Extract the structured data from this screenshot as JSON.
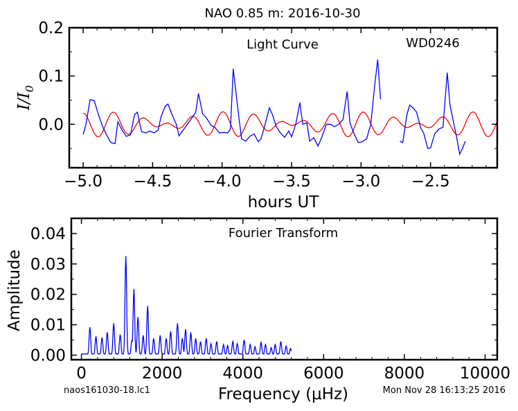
{
  "title": "NAO 0.85 m:  2016-10-30",
  "footer": {
    "filename": "naos161030-18.lc1",
    "timestamp": "Mon Nov 28 16:13:25 2016"
  },
  "chart_data": [
    {
      "type": "line",
      "annotation_left": "Light Curve",
      "annotation_right": "WD0246",
      "xlabel": "hours UT",
      "ylabel": "I/I",
      "ylabel_sub": "0",
      "xlim": [
        -5.1,
        -2.02
      ],
      "ylim": [
        -0.09,
        0.2
      ],
      "xticks": [
        -5.0,
        -4.5,
        -4.0,
        -3.5,
        -3.0,
        -2.5
      ],
      "xtick_labels": [
        "−5.0",
        "−4.5",
        "−4.0",
        "−3.5",
        "−3.0",
        "−2.5"
      ],
      "yticks": [
        0.0,
        0.1,
        0.2
      ],
      "ytick_labels": [
        "0.0",
        "0.1",
        "0.2"
      ],
      "grid": false,
      "colors": {
        "data": "#0000ff",
        "model": "#ff0000"
      },
      "series": [
        {
          "segments": [
            [
              [
                -5.0,
                -0.021
              ],
              [
                -4.98,
                0.0
              ],
              [
                -4.95,
                0.051
              ],
              [
                -4.92,
                0.049
              ],
              [
                -4.89,
                0.02
              ],
              [
                -4.86,
                -0.005
              ],
              [
                -4.83,
                -0.023
              ],
              [
                -4.8,
                -0.038
              ],
              [
                -4.77,
                -0.04
              ],
              [
                -4.75,
                0.005
              ],
              [
                -4.72,
                -0.012
              ],
              [
                -4.69,
                -0.025
              ],
              [
                -4.66,
                -0.022
              ],
              [
                -4.63,
                0.02
              ],
              [
                -4.61,
                0.025
              ],
              [
                -4.58,
                -0.015
              ],
              [
                -4.55,
                -0.018
              ],
              [
                -4.52,
                -0.014
              ],
              [
                -4.49,
                -0.018
              ],
              [
                -4.46,
                -0.012
              ],
              [
                -4.44,
                0.015
              ],
              [
                -4.41,
                0.037
              ],
              [
                -4.39,
                0.042
              ],
              [
                -4.36,
                0.02
              ],
              [
                -4.33,
                0.0
              ],
              [
                -4.31,
                -0.024
              ],
              [
                -4.28,
                -0.012
              ],
              [
                -4.25,
                0.0
              ],
              [
                -4.22,
                0.012
              ],
              [
                -4.19,
                0.025
              ],
              [
                -4.17,
                0.064
              ],
              [
                -4.14,
                0.022
              ],
              [
                -4.11,
                0.012
              ],
              [
                -4.08,
                -0.002
              ],
              [
                -4.05,
                -0.007
              ],
              [
                -4.02,
                -0.018
              ],
              [
                -3.99,
                -0.017
              ],
              [
                -3.96,
                -0.018
              ],
              [
                -3.94,
                -0.01
              ],
              [
                -3.92,
                0.115
              ],
              [
                -3.89,
                0.04
              ],
              [
                -3.86,
                -0.03
              ],
              [
                -3.83,
                -0.035
              ],
              [
                -3.8,
                -0.025
              ],
              [
                -3.77,
                -0.02
              ],
              [
                -3.74,
                -0.036
              ],
              [
                -3.72,
                -0.03
              ],
              [
                -3.69,
                0.0
              ],
              [
                -3.66,
                0.034
              ],
              [
                -3.64,
                0.022
              ],
              [
                -3.61,
                -0.005
              ],
              [
                -3.58,
                -0.018
              ],
              [
                -3.55,
                -0.027
              ],
              [
                -3.52,
                -0.014
              ],
              [
                -3.5,
                -0.026
              ],
              [
                -3.47,
                0.0
              ],
              [
                -3.44,
                0.045
              ],
              [
                -3.42,
                0.0
              ],
              [
                -3.39,
                0.003
              ],
              [
                -3.37,
                -0.035
              ],
              [
                -3.34,
                -0.028
              ],
              [
                -3.31,
                -0.045
              ],
              [
                -3.28,
                -0.025
              ],
              [
                -3.25,
                0.0
              ],
              [
                -3.22,
                0.0
              ],
              [
                -3.19,
                -0.005
              ],
              [
                -3.16,
                0.0
              ],
              [
                -3.13,
                0.01
              ],
              [
                -3.1,
                0.068
              ],
              [
                -3.08,
                0.003
              ],
              [
                -3.05,
                -0.02
              ],
              [
                -3.02,
                -0.038
              ],
              [
                -2.99,
                -0.036
              ],
              [
                -2.96,
                -0.03
              ],
              [
                -2.93,
                0.0
              ],
              [
                -2.9,
                0.085
              ],
              [
                -2.88,
                0.134
              ],
              [
                -2.86,
                0.052
              ]
            ],
            [
              [
                -2.72,
                -0.035
              ],
              [
                -2.7,
                -0.038
              ],
              [
                -2.67,
                0.02
              ],
              [
                -2.65,
                0.04
              ],
              [
                -2.62,
                0.032
              ],
              [
                -2.6,
                0.025
              ],
              [
                -2.57,
                -0.008
              ],
              [
                -2.55,
                -0.018
              ],
              [
                -2.52,
                -0.05
              ],
              [
                -2.5,
                -0.049
              ],
              [
                -2.47,
                -0.02
              ],
              [
                -2.44,
                -0.01
              ],
              [
                -2.41,
                -0.006
              ],
              [
                -2.38,
                0.107
              ],
              [
                -2.36,
                0.04
              ],
              [
                -2.33,
                -0.002
              ],
              [
                -2.31,
                -0.03
              ],
              [
                -2.29,
                -0.062
              ],
              [
                -2.27,
                -0.05
              ],
              [
                -2.25,
                -0.035
              ]
            ]
          ]
        },
        {
          "model": {
            "kind": "two-tone sinusoid",
            "x_range": [
              -5.0,
              -2.02
            ]
          }
        }
      ]
    },
    {
      "type": "line",
      "annotation": "Fourier Transform",
      "xlabel": "Frequency (μHz)",
      "ylabel": "Amplitude",
      "xlim": [
        -250,
        10300
      ],
      "ylim": [
        -0.0015,
        0.045
      ],
      "xticks": [
        0,
        2000,
        4000,
        6000,
        8000,
        10000
      ],
      "xtick_labels": [
        "0",
        "2000",
        "4000",
        "6000",
        "8000",
        "10000"
      ],
      "yticks": [
        0.0,
        0.01,
        0.02,
        0.03,
        0.04
      ],
      "ytick_labels": [
        "0.00",
        "0.01",
        "0.02",
        "0.03",
        "0.04"
      ],
      "grid": false,
      "color": "#0000ff",
      "x_range": [
        0,
        5200
      ],
      "peaks": [
        {
          "x": 210,
          "y": 0.0092
        },
        {
          "x": 360,
          "y": 0.0062
        },
        {
          "x": 510,
          "y": 0.0058
        },
        {
          "x": 640,
          "y": 0.0075
        },
        {
          "x": 800,
          "y": 0.0105
        },
        {
          "x": 960,
          "y": 0.0068
        },
        {
          "x": 1100,
          "y": 0.0326
        },
        {
          "x": 1250,
          "y": 0.005
        },
        {
          "x": 1300,
          "y": 0.0218
        },
        {
          "x": 1400,
          "y": 0.0125
        },
        {
          "x": 1530,
          "y": 0.0065
        },
        {
          "x": 1640,
          "y": 0.0162
        },
        {
          "x": 1790,
          "y": 0.0055
        },
        {
          "x": 1950,
          "y": 0.0065
        },
        {
          "x": 2100,
          "y": 0.0055
        },
        {
          "x": 2210,
          "y": 0.0078
        },
        {
          "x": 2380,
          "y": 0.0105
        },
        {
          "x": 2500,
          "y": 0.0055
        },
        {
          "x": 2580,
          "y": 0.0085
        },
        {
          "x": 2710,
          "y": 0.0075
        },
        {
          "x": 2830,
          "y": 0.0055
        },
        {
          "x": 2950,
          "y": 0.0045
        },
        {
          "x": 3090,
          "y": 0.0055
        },
        {
          "x": 3210,
          "y": 0.0038
        },
        {
          "x": 3350,
          "y": 0.0045
        },
        {
          "x": 3520,
          "y": 0.0035
        },
        {
          "x": 3620,
          "y": 0.0032
        },
        {
          "x": 3750,
          "y": 0.0045
        },
        {
          "x": 3860,
          "y": 0.0038
        },
        {
          "x": 4030,
          "y": 0.005
        },
        {
          "x": 4180,
          "y": 0.0035
        },
        {
          "x": 4300,
          "y": 0.0028
        },
        {
          "x": 4450,
          "y": 0.0042
        },
        {
          "x": 4560,
          "y": 0.0035
        },
        {
          "x": 4700,
          "y": 0.0025
        },
        {
          "x": 4800,
          "y": 0.0035
        },
        {
          "x": 4940,
          "y": 0.0045
        },
        {
          "x": 5070,
          "y": 0.003
        },
        {
          "x": 5180,
          "y": 0.0022
        }
      ]
    }
  ]
}
